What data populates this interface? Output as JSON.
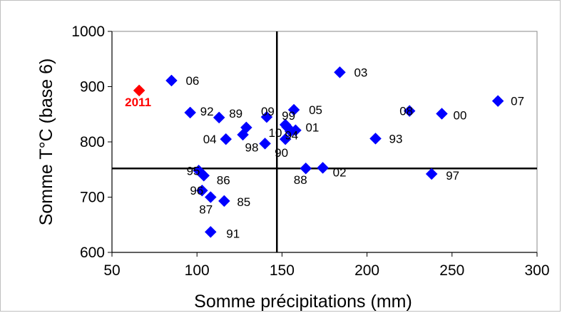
{
  "chart_data": {
    "type": "scatter",
    "xlabel": "Somme précipitations (mm)",
    "ylabel": "Somme T°C (base 6)",
    "xlim": [
      50,
      300
    ],
    "ylim": [
      600,
      1000
    ],
    "x_ticks": [
      50,
      100,
      150,
      200,
      250,
      300
    ],
    "y_ticks": [
      600,
      700,
      800,
      900,
      1000
    ],
    "grid": false,
    "reference_lines": {
      "x": 147,
      "y": 752
    },
    "colors": {
      "points": "#0000ff",
      "highlight": "#ff0000"
    },
    "points": [
      {
        "label": "2011",
        "x": 66,
        "y": 893,
        "highlight": true
      },
      {
        "label": "06",
        "x": 85,
        "y": 911
      },
      {
        "label": "92",
        "x": 96,
        "y": 853
      },
      {
        "label": "89",
        "x": 113,
        "y": 844
      },
      {
        "label": "04",
        "x": 117,
        "y": 805
      },
      {
        "label": "",
        "x": 127,
        "y": 813
      },
      {
        "label": "",
        "x": 129,
        "y": 826
      },
      {
        "label": "98",
        "x": 140,
        "y": 797
      },
      {
        "label": "09",
        "x": 141,
        "y": 845
      },
      {
        "label": "99",
        "x": 152,
        "y": 831
      },
      {
        "label": "10",
        "x": 153,
        "y": 827
      },
      {
        "label": "94",
        "x": 155,
        "y": 819
      },
      {
        "label": "90",
        "x": 152,
        "y": 805
      },
      {
        "label": "05",
        "x": 157,
        "y": 858
      },
      {
        "label": "01",
        "x": 158,
        "y": 821
      },
      {
        "label": "03",
        "x": 184,
        "y": 926
      },
      {
        "label": "88",
        "x": 164,
        "y": 752
      },
      {
        "label": "02",
        "x": 174,
        "y": 753
      },
      {
        "label": "93",
        "x": 205,
        "y": 806
      },
      {
        "label": "08",
        "x": 225,
        "y": 856
      },
      {
        "label": "00",
        "x": 244,
        "y": 851
      },
      {
        "label": "07",
        "x": 277,
        "y": 874
      },
      {
        "label": "97",
        "x": 238,
        "y": 742
      },
      {
        "label": "95",
        "x": 101,
        "y": 748
      },
      {
        "label": "86",
        "x": 104,
        "y": 739
      },
      {
        "label": "96",
        "x": 103,
        "y": 712
      },
      {
        "label": "87",
        "x": 108,
        "y": 700
      },
      {
        "label": "85",
        "x": 116,
        "y": 693
      },
      {
        "label": "91",
        "x": 108,
        "y": 637
      }
    ]
  }
}
